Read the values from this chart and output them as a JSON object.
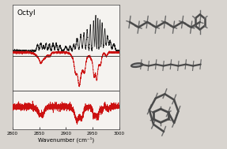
{
  "title_label": "Octyl",
  "xlabel": "Wavenumber (cm⁻¹)",
  "xmin": 2800,
  "xmax": 3000,
  "background_color": "#d8d4cf",
  "plot_bg_color": "#f5f3f0",
  "border_color": "#888888",
  "raman_color": "#1a1a1a",
  "ir1_color": "#cc1111",
  "ir2_color": "#cc1111",
  "mol_bg_color": "#c8c4be"
}
